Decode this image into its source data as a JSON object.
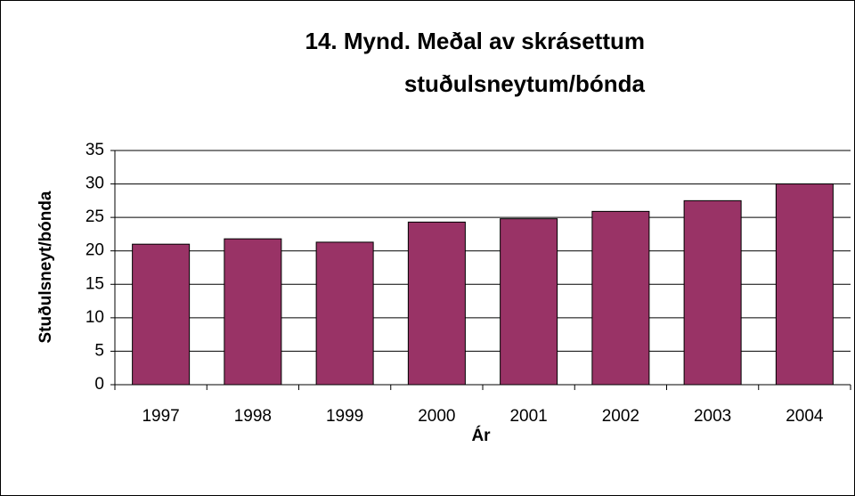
{
  "chart_data": {
    "type": "bar",
    "title": [
      "14. Mynd. Meðal av skrásettum",
      "stuðulsneytum/bónda"
    ],
    "x_label": "Ár",
    "y_label": "Stuðulsneyt/bónda",
    "categories": [
      "1997",
      "1998",
      "1999",
      "2000",
      "2001",
      "2002",
      "2003",
      "2004"
    ],
    "values": [
      21.0,
      21.8,
      21.3,
      24.3,
      24.8,
      25.9,
      27.5,
      30.0
    ],
    "color": "#993366",
    "ylim": [
      0,
      35
    ],
    "yticks": [
      0,
      5,
      10,
      15,
      20,
      25,
      30,
      35
    ],
    "grid": true
  }
}
